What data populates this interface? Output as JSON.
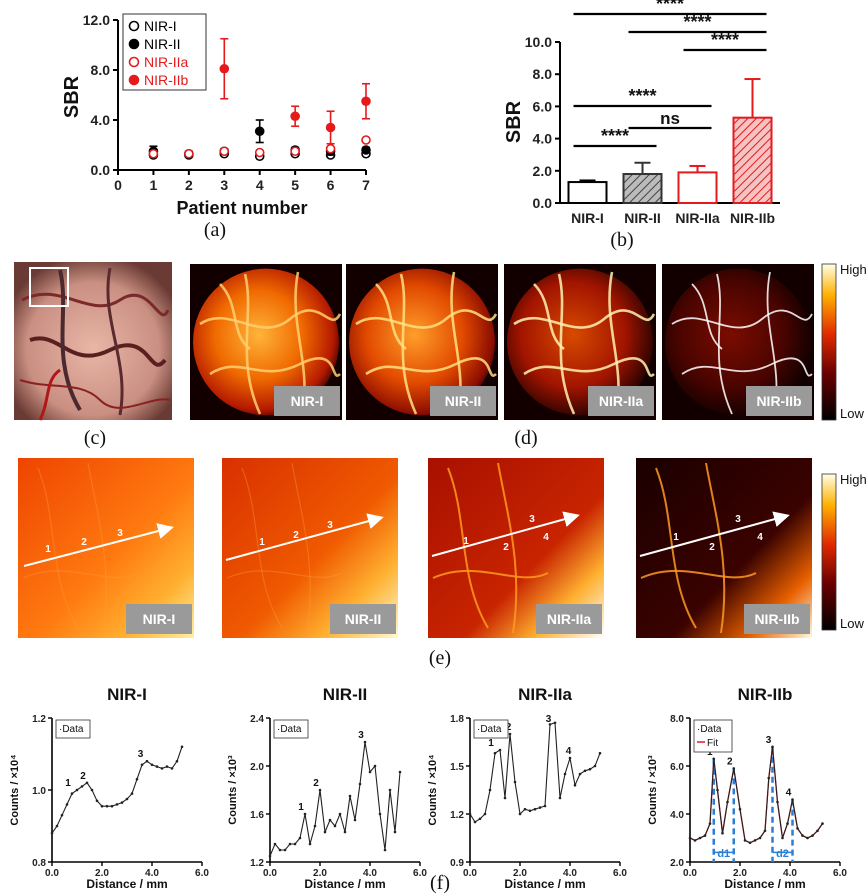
{
  "captions": {
    "a": "(a)",
    "b": "(b)",
    "c": "(c)",
    "d": "(d)",
    "e": "(e)",
    "f": "(f)"
  },
  "chart_data": [
    {
      "id": "a",
      "type": "scatter",
      "xlabel": "Patient number",
      "ylabel": "SBR",
      "xlim": [
        0,
        7
      ],
      "ylim": [
        0,
        12
      ],
      "x_ticks": [
        "0",
        "1",
        "2",
        "3",
        "4",
        "5",
        "6",
        "7"
      ],
      "y_ticks": [
        "0.0",
        "4.0",
        "8.0",
        "12.0"
      ],
      "legend": {
        "placement": "top-left"
      },
      "series": [
        {
          "name": "NIR-I",
          "color": "#000000",
          "marker": "open",
          "points": [
            [
              1,
              1.2
            ],
            [
              2,
              1.2
            ],
            [
              3,
              1.3
            ],
            [
              4,
              1.1
            ],
            [
              5,
              1.3
            ],
            [
              6,
              1.2
            ],
            [
              7,
              1.3
            ]
          ]
        },
        {
          "name": "NIR-II",
          "color": "#000000",
          "marker": "filled",
          "points": [
            [
              1,
              1.5,
              0.4
            ],
            [
              2,
              1.3,
              0.2
            ],
            [
              3,
              1.5,
              0.2
            ],
            [
              4,
              3.1,
              0.9
            ],
            [
              5,
              1.6,
              0.2
            ],
            [
              6,
              1.5,
              0.3
            ],
            [
              7,
              1.6,
              0.2
            ]
          ]
        },
        {
          "name": "NIR-IIa",
          "color": "#e41a1c",
          "marker": "open",
          "points": [
            [
              1,
              1.3
            ],
            [
              2,
              1.3
            ],
            [
              3,
              1.5
            ],
            [
              4,
              1.4
            ],
            [
              5,
              1.5
            ],
            [
              6,
              1.7
            ],
            [
              7,
              2.4
            ]
          ]
        },
        {
          "name": "NIR-IIb",
          "color": "#e41a1c",
          "marker": "filled",
          "points": [
            [
              3,
              8.1,
              2.4
            ],
            [
              5,
              4.3,
              0.8
            ],
            [
              6,
              3.4,
              1.3
            ],
            [
              7,
              5.5,
              1.4
            ]
          ]
        }
      ]
    },
    {
      "id": "b",
      "type": "bar",
      "ylabel": "SBR",
      "ylim": [
        0,
        10
      ],
      "y_ticks": [
        "0.0",
        "2.0",
        "4.0",
        "6.0",
        "8.0",
        "10.0"
      ],
      "categories": [
        "NIR-I",
        "NIR-II",
        "NIR-IIa",
        "NIR-IIb"
      ],
      "values": [
        1.3,
        1.8,
        1.9,
        5.3
      ],
      "errors": [
        0.1,
        0.7,
        0.4,
        2.4
      ],
      "colors": [
        "#000000",
        "#333333",
        "#e41a1c",
        "#e41a1c"
      ],
      "significance": [
        {
          "from": 0,
          "to": 3,
          "label": "****"
        },
        {
          "from": 1,
          "to": 3,
          "label": "****"
        },
        {
          "from": 2,
          "to": 3,
          "label": "****"
        },
        {
          "from": 0,
          "to": 2,
          "label": "****"
        },
        {
          "from": 1,
          "to": 2,
          "label": "ns"
        },
        {
          "from": 0,
          "to": 1,
          "label": "****"
        }
      ]
    },
    {
      "id": "f1",
      "type": "line",
      "title": "NIR-I",
      "xlabel": "Distance / mm",
      "ylabel": "Counts / ×10⁴",
      "xlim": [
        0,
        6
      ],
      "ylim": [
        0.8,
        1.2
      ],
      "x_ticks": [
        "0.0",
        "2.0",
        "4.0",
        "6.0"
      ],
      "y_ticks": [
        "0.8",
        "1.0",
        "1.2"
      ],
      "legend": [
        "·Data"
      ],
      "peaks": [
        {
          "label": "1",
          "x": 0.8,
          "y": 1.0
        },
        {
          "label": "2",
          "x": 1.4,
          "y": 1.02
        },
        {
          "label": "3",
          "x": 3.7,
          "y": 1.08
        }
      ],
      "x": [
        0,
        0.2,
        0.4,
        0.6,
        0.8,
        1.0,
        1.2,
        1.4,
        1.6,
        1.8,
        2.0,
        2.2,
        2.4,
        2.6,
        2.8,
        3.0,
        3.2,
        3.4,
        3.6,
        3.8,
        4.0,
        4.2,
        4.4,
        4.6,
        4.8,
        5.0,
        5.2
      ],
      "y": [
        0.88,
        0.9,
        0.93,
        0.96,
        0.99,
        1.0,
        1.01,
        1.02,
        1.0,
        0.97,
        0.955,
        0.955,
        0.955,
        0.96,
        0.965,
        0.975,
        0.99,
        1.03,
        1.07,
        1.08,
        1.07,
        1.065,
        1.06,
        1.065,
        1.06,
        1.08,
        1.12
      ]
    },
    {
      "id": "f2",
      "type": "line",
      "title": "NIR-II",
      "xlabel": "Distance / mm",
      "ylabel": "Counts / ×10³",
      "xlim": [
        0,
        6
      ],
      "ylim": [
        1.2,
        2.4
      ],
      "x_ticks": [
        "0.0",
        "2.0",
        "4.0",
        "6.0"
      ],
      "y_ticks": [
        "1.2",
        "1.6",
        "2.0",
        "2.4"
      ],
      "legend": [
        "·Data"
      ],
      "peaks": [
        {
          "label": "1",
          "x": 1.4,
          "y": 1.6
        },
        {
          "label": "2",
          "x": 2.0,
          "y": 1.8
        },
        {
          "label": "3",
          "x": 3.8,
          "y": 2.2
        }
      ],
      "x": [
        0,
        0.2,
        0.4,
        0.6,
        0.8,
        1.0,
        1.2,
        1.4,
        1.6,
        1.8,
        2.0,
        2.2,
        2.4,
        2.6,
        2.8,
        3.0,
        3.2,
        3.4,
        3.6,
        3.8,
        4.0,
        4.2,
        4.4,
        4.6,
        4.8,
        5.0,
        5.2
      ],
      "y": [
        1.25,
        1.35,
        1.3,
        1.3,
        1.35,
        1.35,
        1.4,
        1.6,
        1.35,
        1.5,
        1.8,
        1.45,
        1.55,
        1.5,
        1.6,
        1.45,
        1.75,
        1.55,
        1.85,
        2.2,
        1.95,
        2.0,
        1.6,
        1.3,
        1.8,
        1.45,
        1.95
      ]
    },
    {
      "id": "f3",
      "type": "line",
      "title": "NIR-IIa",
      "xlabel": "Distance / mm",
      "ylabel": "Counts / ×10⁴",
      "xlim": [
        0,
        6
      ],
      "ylim": [
        0.9,
        1.8
      ],
      "x_ticks": [
        "0.0",
        "2.0",
        "4.0",
        "6.0"
      ],
      "y_ticks": [
        "0.9",
        "1.2",
        "1.5",
        "1.8"
      ],
      "legend": [
        "·Data"
      ],
      "peaks": [
        {
          "label": "1",
          "x": 1.0,
          "y": 1.6
        },
        {
          "label": "2",
          "x": 1.7,
          "y": 1.7
        },
        {
          "label": "3",
          "x": 3.3,
          "y": 1.75
        },
        {
          "label": "4",
          "x": 4.1,
          "y": 1.55
        }
      ],
      "x": [
        0,
        0.2,
        0.4,
        0.6,
        0.8,
        1.0,
        1.2,
        1.4,
        1.6,
        1.8,
        2.0,
        2.2,
        2.4,
        2.6,
        2.8,
        3.0,
        3.2,
        3.4,
        3.6,
        3.8,
        4.0,
        4.2,
        4.4,
        4.6,
        4.8,
        5.0,
        5.2
      ],
      "y": [
        1.2,
        1.15,
        1.17,
        1.2,
        1.35,
        1.58,
        1.6,
        1.3,
        1.7,
        1.4,
        1.2,
        1.23,
        1.22,
        1.23,
        1.24,
        1.25,
        1.76,
        1.77,
        1.3,
        1.45,
        1.55,
        1.38,
        1.45,
        1.47,
        1.48,
        1.5,
        1.58
      ]
    },
    {
      "id": "f4",
      "type": "line",
      "title": "NIR-IIb",
      "xlabel": "Distance / mm",
      "ylabel": "Counts / ×10³",
      "xlim": [
        0,
        6
      ],
      "ylim": [
        2.0,
        8.0
      ],
      "x_ticks": [
        "0.0",
        "2.0",
        "4.0",
        "6.0"
      ],
      "y_ticks": [
        "2.0",
        "4.0",
        "6.0",
        "8.0"
      ],
      "legend": [
        "·Data",
        "Fit"
      ],
      "peaks": [
        {
          "label": "1",
          "x": 0.95,
          "y": 6.3
        },
        {
          "label": "2",
          "x": 1.75,
          "y": 5.9
        },
        {
          "label": "3",
          "x": 3.3,
          "y": 6.8
        },
        {
          "label": "4",
          "x": 4.1,
          "y": 4.6
        }
      ],
      "distances": [
        "d1",
        "d2"
      ],
      "x": [
        0,
        0.2,
        0.4,
        0.6,
        0.8,
        0.95,
        1.1,
        1.3,
        1.5,
        1.75,
        2.0,
        2.2,
        2.4,
        2.6,
        2.8,
        3.0,
        3.15,
        3.3,
        3.5,
        3.7,
        3.9,
        4.1,
        4.3,
        4.5,
        4.7,
        4.9,
        5.1,
        5.3
      ],
      "y": [
        3.0,
        2.9,
        3.0,
        3.1,
        3.6,
        6.3,
        5.0,
        3.2,
        4.5,
        5.9,
        4.2,
        2.9,
        2.8,
        2.9,
        3.0,
        3.3,
        5.5,
        6.8,
        4.5,
        3.0,
        3.6,
        4.6,
        3.4,
        3.1,
        3.0,
        3.1,
        3.3,
        3.6
      ]
    }
  ],
  "panel_c": {
    "label": "(c)"
  },
  "panel_d": {
    "tags": [
      "NIR-I",
      "NIR-II",
      "NIR-IIa",
      "NIR-IIb"
    ],
    "colorbar": {
      "high": "High",
      "low": "Low"
    }
  },
  "panel_e": {
    "tags": [
      "NIR-I",
      "NIR-II",
      "NIR-IIa",
      "NIR-IIb"
    ],
    "colorbar": {
      "high": "High",
      "low": "Low"
    },
    "point_labels": [
      [
        "1",
        "2",
        "3"
      ],
      [
        "1",
        "2",
        "3"
      ],
      [
        "1",
        "2",
        "3",
        "4"
      ],
      [
        "1",
        "2",
        "3",
        "4"
      ]
    ]
  }
}
